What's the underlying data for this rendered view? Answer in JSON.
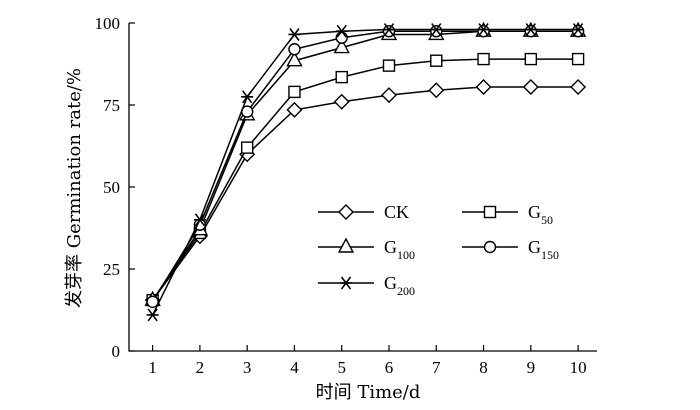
{
  "chart_data": {
    "type": "line",
    "title": "",
    "xlabel": "时间 Time/d",
    "ylabel": "发芽率 Germination rate/%",
    "x": [
      1,
      2,
      3,
      4,
      5,
      6,
      7,
      8,
      9,
      10
    ],
    "xticks": [
      "1",
      "2",
      "3",
      "4",
      "5",
      "6",
      "7",
      "8",
      "9",
      "10"
    ],
    "yticks": [
      "0",
      "25",
      "50",
      "75",
      "100"
    ],
    "xlim": [
      0.5,
      10.4
    ],
    "ylim": [
      0,
      100
    ],
    "grid": false,
    "legend_position": "center-right",
    "series": [
      {
        "name": "CK",
        "base": "CK",
        "sub": "",
        "marker": "diamond",
        "values": [
          15.5,
          35,
          60,
          73.5,
          76,
          78,
          79.5,
          80.5,
          80.5,
          80.5
        ]
      },
      {
        "name": "G50",
        "base": "G",
        "sub": "50",
        "marker": "square",
        "values": [
          15.5,
          36,
          62,
          79,
          83.5,
          87,
          88.5,
          89,
          89,
          89
        ]
      },
      {
        "name": "G100",
        "base": "G",
        "sub": "100",
        "marker": "triangle",
        "values": [
          15.5,
          37,
          72,
          88.5,
          92.5,
          96.5,
          96.5,
          97.5,
          97.5,
          97.5
        ]
      },
      {
        "name": "G150",
        "base": "G",
        "sub": "150",
        "marker": "circle",
        "values": [
          15,
          38.5,
          73,
          92,
          95.5,
          97.5,
          97.5,
          97.5,
          97.5,
          97.5
        ]
      },
      {
        "name": "G200",
        "base": "G",
        "sub": "200",
        "marker": "asterisk",
        "values": [
          11,
          40,
          77.5,
          96.5,
          97.5,
          98,
          98,
          98,
          98,
          98
        ]
      }
    ]
  }
}
